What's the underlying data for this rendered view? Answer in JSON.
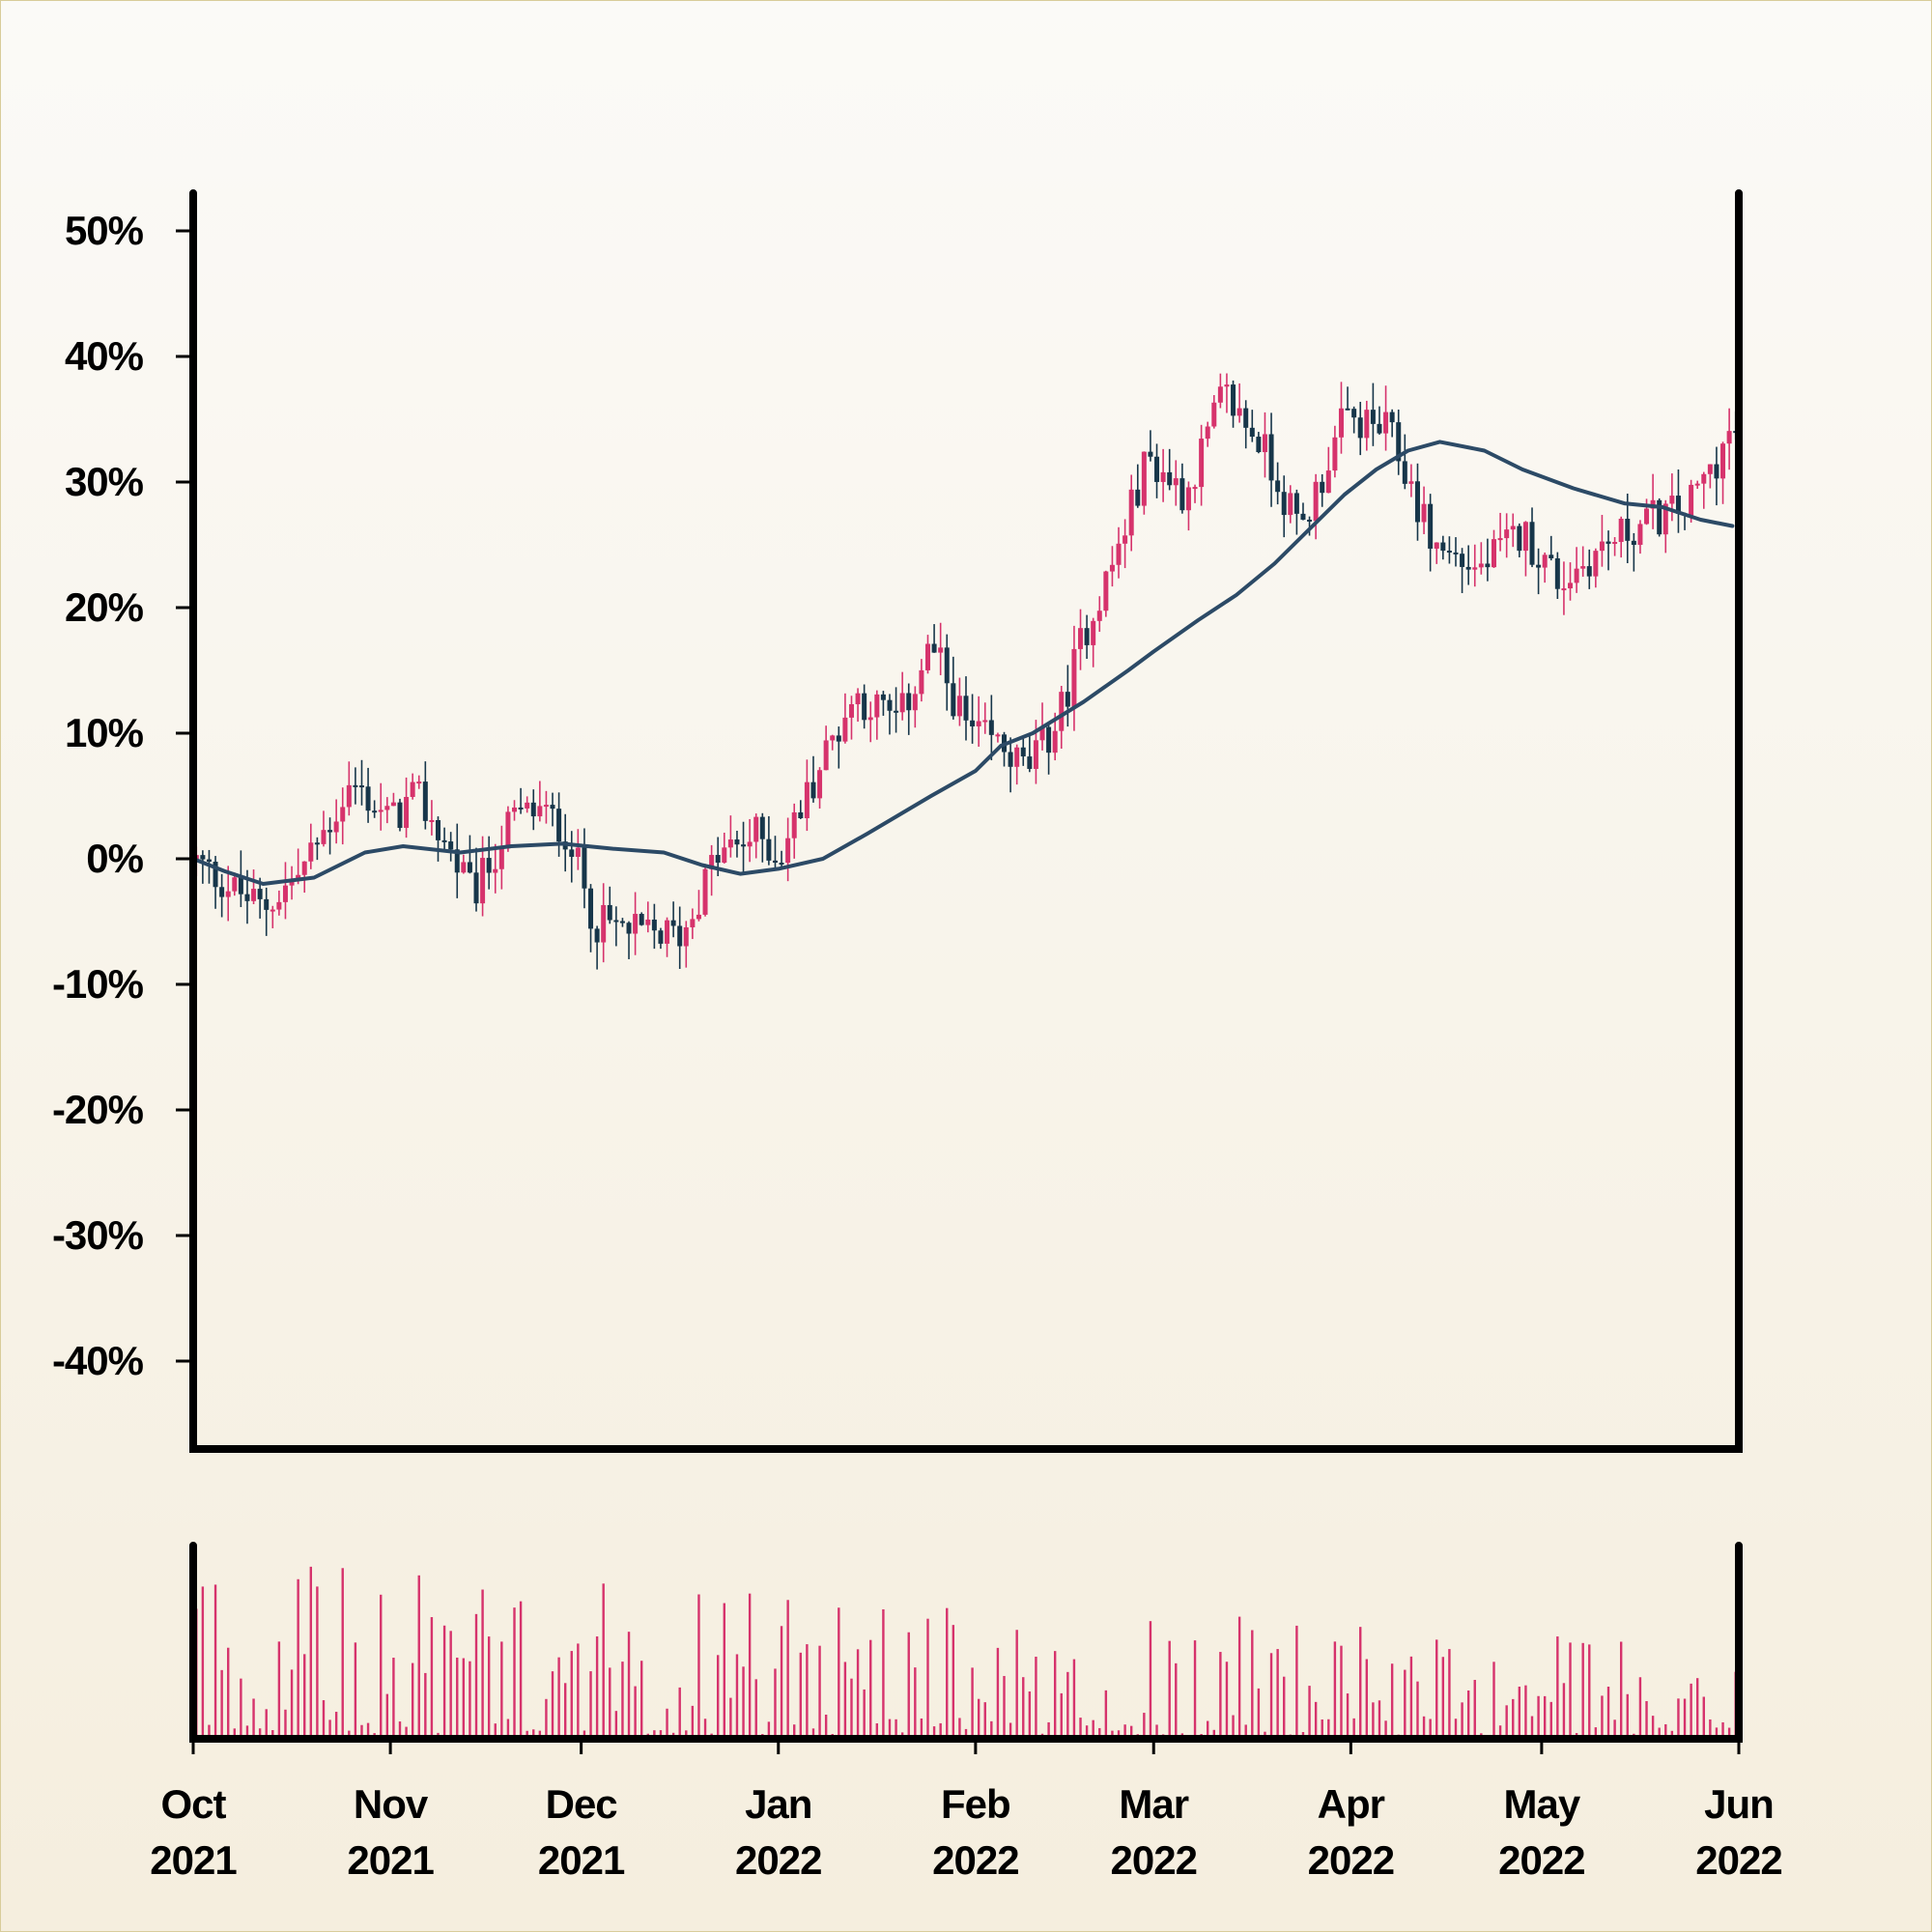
{
  "chart_data": {
    "type": "candlestick",
    "x_axis": {
      "type": "date",
      "range": [
        "2021-10-01",
        "2022-06-01"
      ],
      "ticks": [
        {
          "date": "2021-10-01",
          "month": "Oct",
          "year": "2021"
        },
        {
          "date": "2021-11-01",
          "month": "Nov",
          "year": "2021"
        },
        {
          "date": "2021-12-01",
          "month": "Dec",
          "year": "2021"
        },
        {
          "date": "2022-01-01",
          "month": "Jan",
          "year": "2022"
        },
        {
          "date": "2022-02-01",
          "month": "Feb",
          "year": "2022"
        },
        {
          "date": "2022-03-01",
          "month": "Mar",
          "year": "2022"
        },
        {
          "date": "2022-04-01",
          "month": "Apr",
          "year": "2022"
        },
        {
          "date": "2022-05-01",
          "month": "May",
          "year": "2022"
        },
        {
          "date": "2022-06-01",
          "month": "Jun",
          "year": "2022"
        }
      ]
    },
    "y_axis": {
      "unit": "%",
      "range": [
        -47,
        53
      ],
      "ticks": [
        {
          "value": 50,
          "label": "50%"
        },
        {
          "value": 40,
          "label": "40%"
        },
        {
          "value": 30,
          "label": "30%"
        },
        {
          "value": 20,
          "label": "20%"
        },
        {
          "value": 10,
          "label": "10%"
        },
        {
          "value": 0,
          "label": "0%"
        },
        {
          "value": -10,
          "label": "-10%"
        },
        {
          "value": -20,
          "label": "-20%"
        },
        {
          "value": -30,
          "label": "-30%"
        },
        {
          "value": -40,
          "label": "-40%"
        }
      ]
    },
    "price_close_keypoints": [
      [
        "2021-10-01",
        0
      ],
      [
        "2021-10-06",
        -2
      ],
      [
        "2021-10-12",
        -4
      ],
      [
        "2021-10-18",
        -1
      ],
      [
        "2021-10-26",
        6
      ],
      [
        "2021-11-01",
        3
      ],
      [
        "2021-11-05",
        5
      ],
      [
        "2021-11-10",
        1
      ],
      [
        "2021-11-14",
        -3
      ],
      [
        "2021-11-20",
        3
      ],
      [
        "2021-11-24",
        4
      ],
      [
        "2021-11-29",
        2
      ],
      [
        "2021-12-03",
        -5
      ],
      [
        "2021-12-10",
        -6
      ],
      [
        "2021-12-17",
        -6
      ],
      [
        "2021-12-22",
        0
      ],
      [
        "2021-12-29",
        2
      ],
      [
        "2022-01-01",
        0
      ],
      [
        "2022-01-08",
        8
      ],
      [
        "2022-01-13",
        13
      ],
      [
        "2022-01-20",
        11
      ],
      [
        "2022-01-25",
        17
      ],
      [
        "2022-01-31",
        10
      ],
      [
        "2022-02-05",
        9
      ],
      [
        "2022-02-09",
        7
      ],
      [
        "2022-02-14",
        11
      ],
      [
        "2022-02-18",
        18
      ],
      [
        "2022-02-23",
        24
      ],
      [
        "2022-02-28",
        32
      ],
      [
        "2022-03-06",
        29
      ],
      [
        "2022-03-12",
        37
      ],
      [
        "2022-03-18",
        33
      ],
      [
        "2022-03-24",
        26
      ],
      [
        "2022-03-31",
        35
      ],
      [
        "2022-04-07",
        34
      ],
      [
        "2022-04-14",
        25
      ],
      [
        "2022-04-21",
        23
      ],
      [
        "2022-04-28",
        26
      ],
      [
        "2022-05-04",
        22
      ],
      [
        "2022-05-11",
        25
      ],
      [
        "2022-05-18",
        27
      ],
      [
        "2022-05-24",
        28
      ],
      [
        "2022-05-31",
        34
      ]
    ],
    "moving_average": {
      "color": "#2c4a66",
      "points": [
        [
          "2021-10-01",
          0
        ],
        [
          "2021-10-06",
          -1
        ],
        [
          "2021-10-12",
          -2
        ],
        [
          "2021-10-20",
          -1.5
        ],
        [
          "2021-10-28",
          0.5
        ],
        [
          "2021-11-03",
          1
        ],
        [
          "2021-11-12",
          0.5
        ],
        [
          "2021-11-20",
          1
        ],
        [
          "2021-11-28",
          1.2
        ],
        [
          "2021-12-06",
          0.8
        ],
        [
          "2021-12-14",
          0.5
        ],
        [
          "2021-12-20",
          -0.5
        ],
        [
          "2021-12-26",
          -1.2
        ],
        [
          "2022-01-01",
          -0.8
        ],
        [
          "2022-01-08",
          0
        ],
        [
          "2022-01-15",
          2
        ],
        [
          "2022-01-25",
          5
        ],
        [
          "2022-02-01",
          7
        ],
        [
          "2022-02-05",
          9
        ],
        [
          "2022-02-10",
          10
        ],
        [
          "2022-02-18",
          12.5
        ],
        [
          "2022-02-25",
          15
        ],
        [
          "2022-03-01",
          16.5
        ],
        [
          "2022-03-08",
          19
        ],
        [
          "2022-03-14",
          21
        ],
        [
          "2022-03-20",
          23.5
        ],
        [
          "2022-03-26",
          26.5
        ],
        [
          "2022-03-31",
          29
        ],
        [
          "2022-04-05",
          31
        ],
        [
          "2022-04-10",
          32.5
        ],
        [
          "2022-04-15",
          33.2
        ],
        [
          "2022-04-22",
          32.5
        ],
        [
          "2022-04-28",
          31
        ],
        [
          "2022-05-06",
          29.5
        ],
        [
          "2022-05-14",
          28.3
        ],
        [
          "2022-05-20",
          28
        ],
        [
          "2022-05-26",
          27
        ],
        [
          "2022-05-31",
          26.5
        ]
      ]
    },
    "colors": {
      "up": "#d6336c",
      "down": "#17364a",
      "volume": "#d6336c",
      "axis": "#000000"
    },
    "volume_panel": {
      "grid": false,
      "y_tick_labels": false
    },
    "grid": false,
    "legend": "none"
  }
}
